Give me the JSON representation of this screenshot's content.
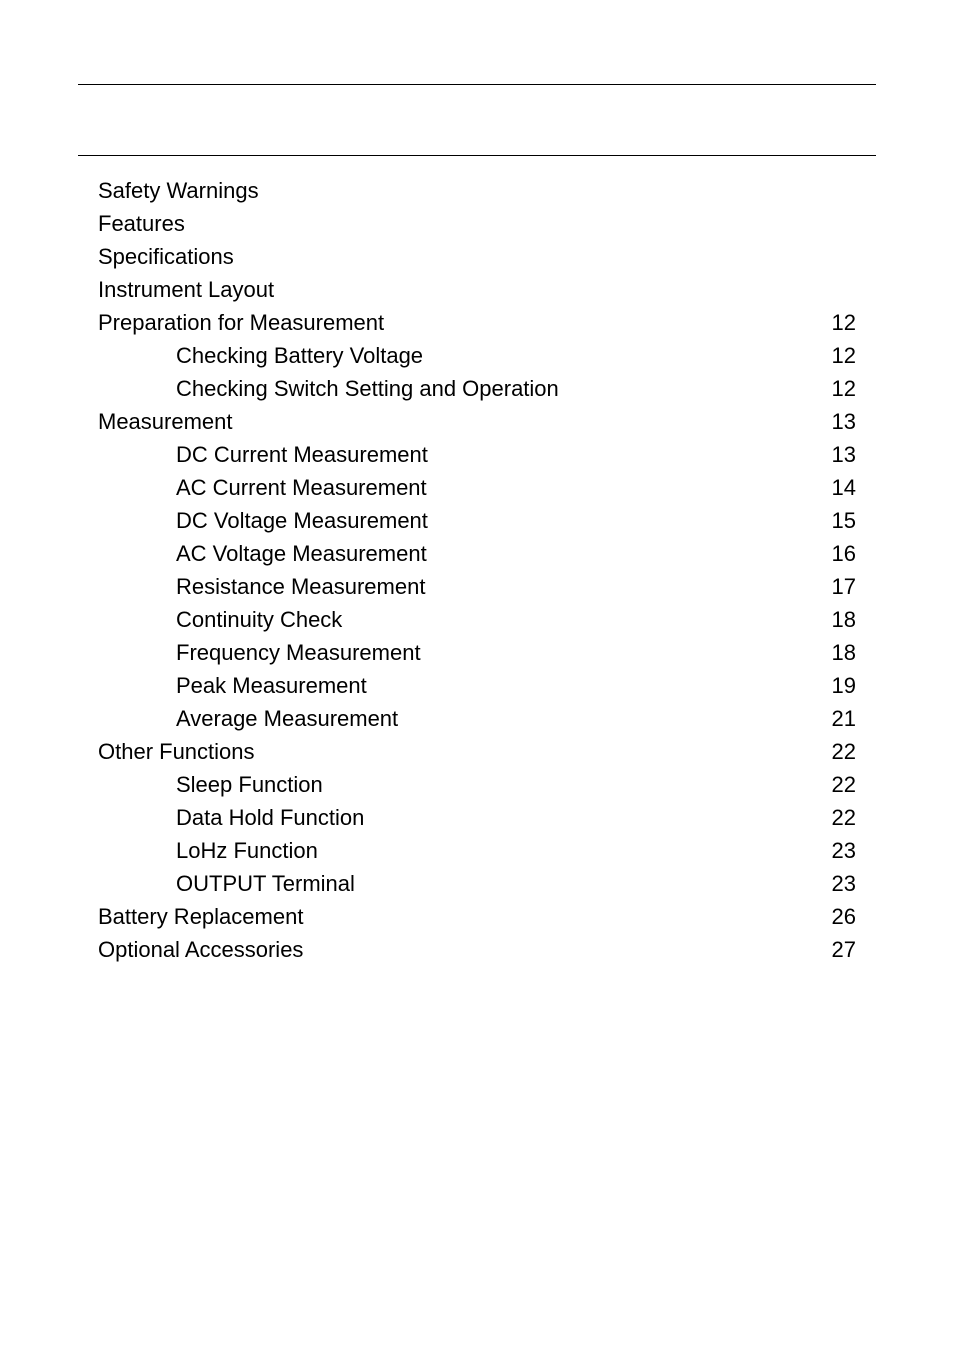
{
  "colors": {
    "background": "#ffffff",
    "text": "#000000",
    "rule": "#000000"
  },
  "typography": {
    "font_family": "Arial, Helvetica, sans-serif",
    "font_size_pt": 16,
    "line_height": 1.5
  },
  "toc": [
    {
      "level": 0,
      "label": "Safety Warnings",
      "page": ""
    },
    {
      "level": 0,
      "label": "Features",
      "page": ""
    },
    {
      "level": 0,
      "label": "Specifications",
      "page": ""
    },
    {
      "level": 0,
      "label": "Instrument Layout",
      "page": ""
    },
    {
      "level": 0,
      "label": "Preparation for Measurement",
      "page": "12"
    },
    {
      "level": 1,
      "label": "Checking Battery Voltage",
      "page": "12"
    },
    {
      "level": 1,
      "label": "Checking Switch Setting and Operation",
      "page": "12"
    },
    {
      "level": 0,
      "label": "Measurement",
      "page": "13"
    },
    {
      "level": 1,
      "label": "DC Current Measurement",
      "page": "13"
    },
    {
      "level": 1,
      "label": "AC Current Measurement",
      "page": "14"
    },
    {
      "level": 1,
      "label": "DC Voltage Measurement",
      "page": "15"
    },
    {
      "level": 1,
      "label": "AC Voltage Measurement",
      "page": "16"
    },
    {
      "level": 1,
      "label": "Resistance Measurement",
      "page": "17"
    },
    {
      "level": 1,
      "label": "Continuity Check",
      "page": "18"
    },
    {
      "level": 1,
      "label": "Frequency Measurement",
      "page": "18"
    },
    {
      "level": 1,
      "label": "Peak Measurement",
      "page": "19"
    },
    {
      "level": 1,
      "label": "Average Measurement",
      "page": "21"
    },
    {
      "level": 0,
      "label": "Other Functions",
      "page": "22"
    },
    {
      "level": 1,
      "label": "Sleep Function",
      "page": "22"
    },
    {
      "level": 1,
      "label": "Data Hold Function",
      "page": "22"
    },
    {
      "level": 1,
      "label": "LoHz Function",
      "page": "23"
    },
    {
      "level": 1,
      "label": "OUTPUT Terminal",
      "page": "23"
    },
    {
      "level": 0,
      "label": "Battery Replacement",
      "page": "26"
    },
    {
      "level": 0,
      "label": "Optional Accessories",
      "page": "27"
    }
  ]
}
